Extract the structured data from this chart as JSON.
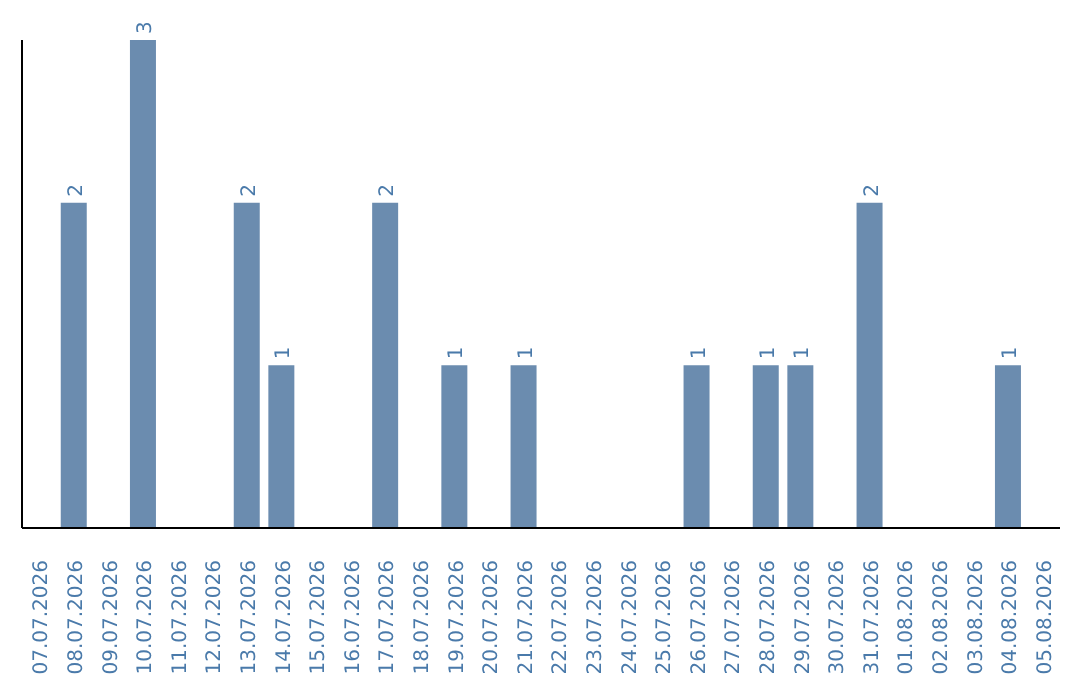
{
  "chart_data": {
    "type": "bar",
    "categories": [
      "07.07.2026",
      "08.07.2026",
      "09.07.2026",
      "10.07.2026",
      "11.07.2026",
      "12.07.2026",
      "13.07.2026",
      "14.07.2026",
      "15.07.2026",
      "16.07.2026",
      "17.07.2026",
      "18.07.2026",
      "19.07.2026",
      "20.07.2026",
      "21.07.2026",
      "22.07.2026",
      "23.07.2026",
      "24.07.2026",
      "25.07.2026",
      "26.07.2026",
      "27.07.2026",
      "28.07.2026",
      "29.07.2026",
      "30.07.2026",
      "31.07.2026",
      "01.08.2026",
      "02.08.2026",
      "03.08.2026",
      "04.08.2026",
      "05.08.2026"
    ],
    "values": [
      0,
      2,
      0,
      3,
      0,
      0,
      2,
      1,
      0,
      0,
      2,
      0,
      1,
      0,
      1,
      0,
      0,
      0,
      0,
      1,
      0,
      1,
      1,
      0,
      2,
      0,
      0,
      0,
      1,
      0
    ],
    "value_labels": [
      null,
      "2",
      null,
      "3",
      null,
      null,
      "2",
      "1",
      null,
      null,
      "2",
      null,
      "1",
      null,
      "1",
      null,
      null,
      null,
      null,
      "1",
      null,
      "1",
      "1",
      null,
      "2",
      null,
      null,
      null,
      "1",
      null
    ],
    "color": "#6b8caf",
    "tick_labels": "x",
    "grid": false
  }
}
